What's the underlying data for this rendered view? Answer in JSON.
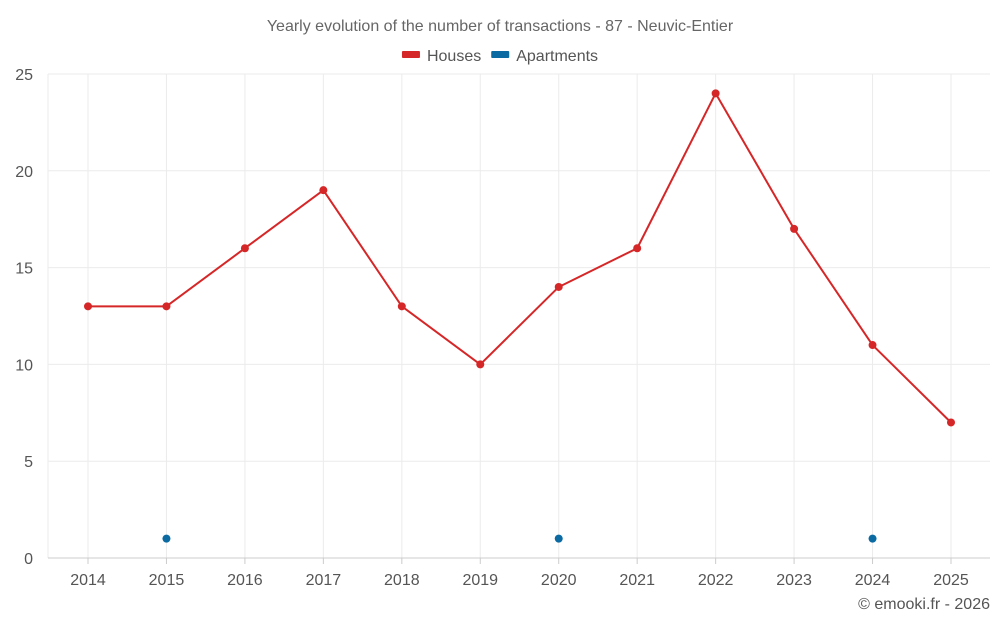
{
  "chart_data": {
    "type": "line",
    "title": "Yearly evolution of the number of transactions - 87 - Neuvic-Entier",
    "xlabel": "",
    "ylabel": "",
    "categories": [
      "2014",
      "2015",
      "2016",
      "2017",
      "2018",
      "2019",
      "2020",
      "2021",
      "2022",
      "2023",
      "2024",
      "2025"
    ],
    "ylim": [
      0,
      25
    ],
    "yticks": [
      0,
      5,
      10,
      15,
      20,
      25
    ],
    "grid": true,
    "legend_position": "top-center",
    "series": [
      {
        "name": "Houses",
        "color": "#d62728",
        "style": "line-with-markers",
        "values": [
          13,
          13,
          16,
          19,
          13,
          10,
          14,
          16,
          24,
          17,
          11,
          7
        ]
      },
      {
        "name": "Apartments",
        "color": "#0b6aa2",
        "style": "markers-only",
        "values": [
          null,
          1,
          null,
          null,
          null,
          null,
          1,
          null,
          null,
          null,
          1,
          null
        ]
      }
    ],
    "credit": "© emooki.fr - 2026"
  }
}
